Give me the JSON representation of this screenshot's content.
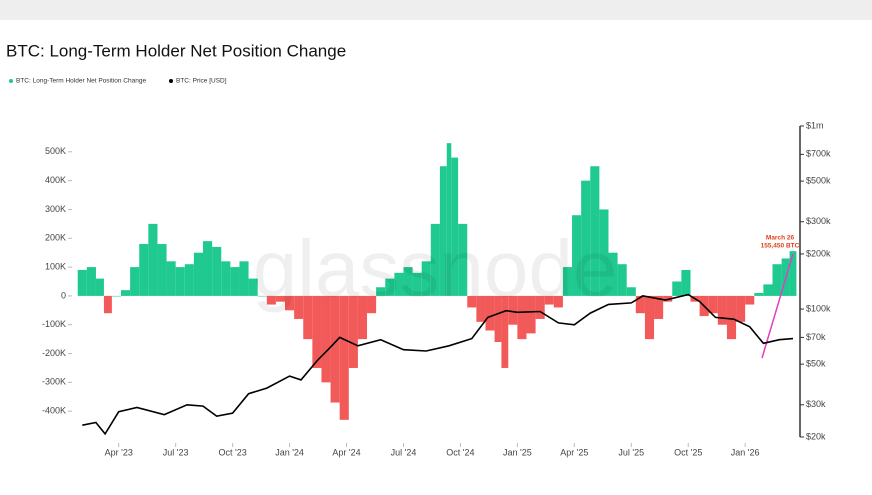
{
  "chart_data": {
    "type": "bar-line",
    "title": "BTC: Long-Term Holder Net Position Change",
    "watermark": "glassnode",
    "annotation": {
      "date": "March 26",
      "label": "155,450 BTC"
    },
    "xlim": [
      2023.08,
      2026.21
    ],
    "xticks": [
      {
        "value": 2023.25,
        "label": "Apr '23"
      },
      {
        "value": 2023.5,
        "label": "Jul '23"
      },
      {
        "value": 2023.75,
        "label": "Oct '23"
      },
      {
        "value": 2024.0,
        "label": "Jan '24"
      },
      {
        "value": 2024.25,
        "label": "Apr '24"
      },
      {
        "value": 2024.5,
        "label": "Jul '24"
      },
      {
        "value": 2024.75,
        "label": "Oct '24"
      },
      {
        "value": 2025.0,
        "label": "Jan '25"
      },
      {
        "value": 2025.25,
        "label": "Apr '25"
      },
      {
        "value": 2025.5,
        "label": "Jul '25"
      },
      {
        "value": 2025.75,
        "label": "Oct '25"
      },
      {
        "value": 2026.0,
        "label": "Jan '26"
      }
    ],
    "ylim": [
      -500000,
      600000
    ],
    "yticks": [
      {
        "value": 500000,
        "label": "500K"
      },
      {
        "value": 400000,
        "label": "400K"
      },
      {
        "value": 300000,
        "label": "300K"
      },
      {
        "value": 200000,
        "label": "200K"
      },
      {
        "value": 100000,
        "label": "100K"
      },
      0,
      {
        "value": -100000,
        "label": "-100K"
      },
      {
        "value": -200000,
        "label": "-200K"
      },
      {
        "value": -300000,
        "label": "-300K"
      },
      {
        "value": -400000,
        "label": "-400K"
      }
    ],
    "y2lim": [
      20000,
      1000000
    ],
    "y2log": true,
    "y2ticks": [
      {
        "value": 1000000,
        "label": "$1m"
      },
      {
        "value": 700000,
        "label": "$700k"
      },
      {
        "value": 500000,
        "label": "$500k"
      },
      {
        "value": 300000,
        "label": "$300k"
      },
      {
        "value": 200000,
        "label": "$200k"
      },
      {
        "value": 100000,
        "label": "$100k"
      },
      {
        "value": 70000,
        "label": "$70k"
      },
      {
        "value": 50000,
        "label": "$50k"
      },
      {
        "value": 30000,
        "label": "$30k"
      },
      {
        "value": 20000,
        "label": "$20k"
      }
    ],
    "series": [
      {
        "name": "BTC: Long-Term Holder Net Position Change",
        "color": "#1fc98f",
        "negative_color": "#f25a5a",
        "x": [
          2023.09,
          2023.13,
          2023.17,
          2023.2,
          2023.24,
          2023.28,
          2023.32,
          2023.36,
          2023.4,
          2023.44,
          2023.48,
          2023.52,
          2023.56,
          2023.6,
          2023.64,
          2023.68,
          2023.72,
          2023.76,
          2023.8,
          2023.84,
          2023.88,
          2023.92,
          2023.96,
          2024.0,
          2024.04,
          2024.08,
          2024.12,
          2024.16,
          2024.2,
          2024.24,
          2024.28,
          2024.32,
          2024.36,
          2024.4,
          2024.44,
          2024.48,
          2024.52,
          2024.56,
          2024.6,
          2024.64,
          2024.68,
          2024.7,
          2024.72,
          2024.76,
          2024.8,
          2024.84,
          2024.88,
          2024.92,
          2024.94,
          2024.98,
          2025.02,
          2025.06,
          2025.1,
          2025.14,
          2025.18,
          2025.22,
          2025.26,
          2025.3,
          2025.34,
          2025.38,
          2025.42,
          2025.46,
          2025.5,
          2025.54,
          2025.58,
          2025.62,
          2025.66,
          2025.7,
          2025.74,
          2025.78,
          2025.82,
          2025.86,
          2025.9,
          2025.94,
          2025.98,
          2026.02,
          2026.06,
          2026.1,
          2026.14,
          2026.18,
          2026.21
        ],
        "values": [
          90000,
          100000,
          60000,
          -60000,
          0,
          20000,
          100000,
          180000,
          250000,
          180000,
          120000,
          100000,
          110000,
          150000,
          190000,
          170000,
          120000,
          100000,
          120000,
          60000,
          0,
          -30000,
          -20000,
          -50000,
          -80000,
          -150000,
          -250000,
          -300000,
          -370000,
          -430000,
          -250000,
          -150000,
          -60000,
          30000,
          60000,
          80000,
          100000,
          80000,
          120000,
          250000,
          450000,
          530000,
          480000,
          250000,
          -40000,
          -90000,
          -120000,
          -160000,
          -250000,
          -100000,
          -150000,
          -130000,
          -80000,
          -30000,
          -40000,
          100000,
          280000,
          400000,
          450000,
          300000,
          150000,
          110000,
          30000,
          -60000,
          -150000,
          -80000,
          -20000,
          50000,
          90000,
          -20000,
          -70000,
          -60000,
          -100000,
          -150000,
          -90000,
          -30000,
          10000,
          40000,
          110000,
          130000,
          155450
        ]
      },
      {
        "name": "BTC: Price [USD]",
        "color": "#000000",
        "axis": "y2",
        "x": [
          2023.09,
          2023.15,
          2023.19,
          2023.25,
          2023.33,
          2023.45,
          2023.55,
          2023.62,
          2023.68,
          2023.75,
          2023.82,
          2023.9,
          2024.0,
          2024.05,
          2024.12,
          2024.18,
          2024.22,
          2024.3,
          2024.4,
          2024.5,
          2024.6,
          2024.7,
          2024.8,
          2024.87,
          2024.95,
          2025.0,
          2025.1,
          2025.18,
          2025.25,
          2025.32,
          2025.4,
          2025.5,
          2025.55,
          2025.65,
          2025.75,
          2025.8,
          2025.87,
          2025.95,
          2026.02,
          2026.08,
          2026.15,
          2026.21
        ],
        "values": [
          23200,
          24000,
          20800,
          27500,
          29000,
          26500,
          30000,
          29500,
          26000,
          27000,
          34500,
          37000,
          43000,
          41000,
          52000,
          62000,
          70000,
          63000,
          68000,
          60000,
          59000,
          63000,
          69000,
          90000,
          98000,
          96000,
          97000,
          84000,
          82000,
          95000,
          106000,
          108000,
          118000,
          112000,
          120000,
          110000,
          90000,
          88000,
          80000,
          65000,
          68000,
          69000
        ]
      }
    ]
  }
}
